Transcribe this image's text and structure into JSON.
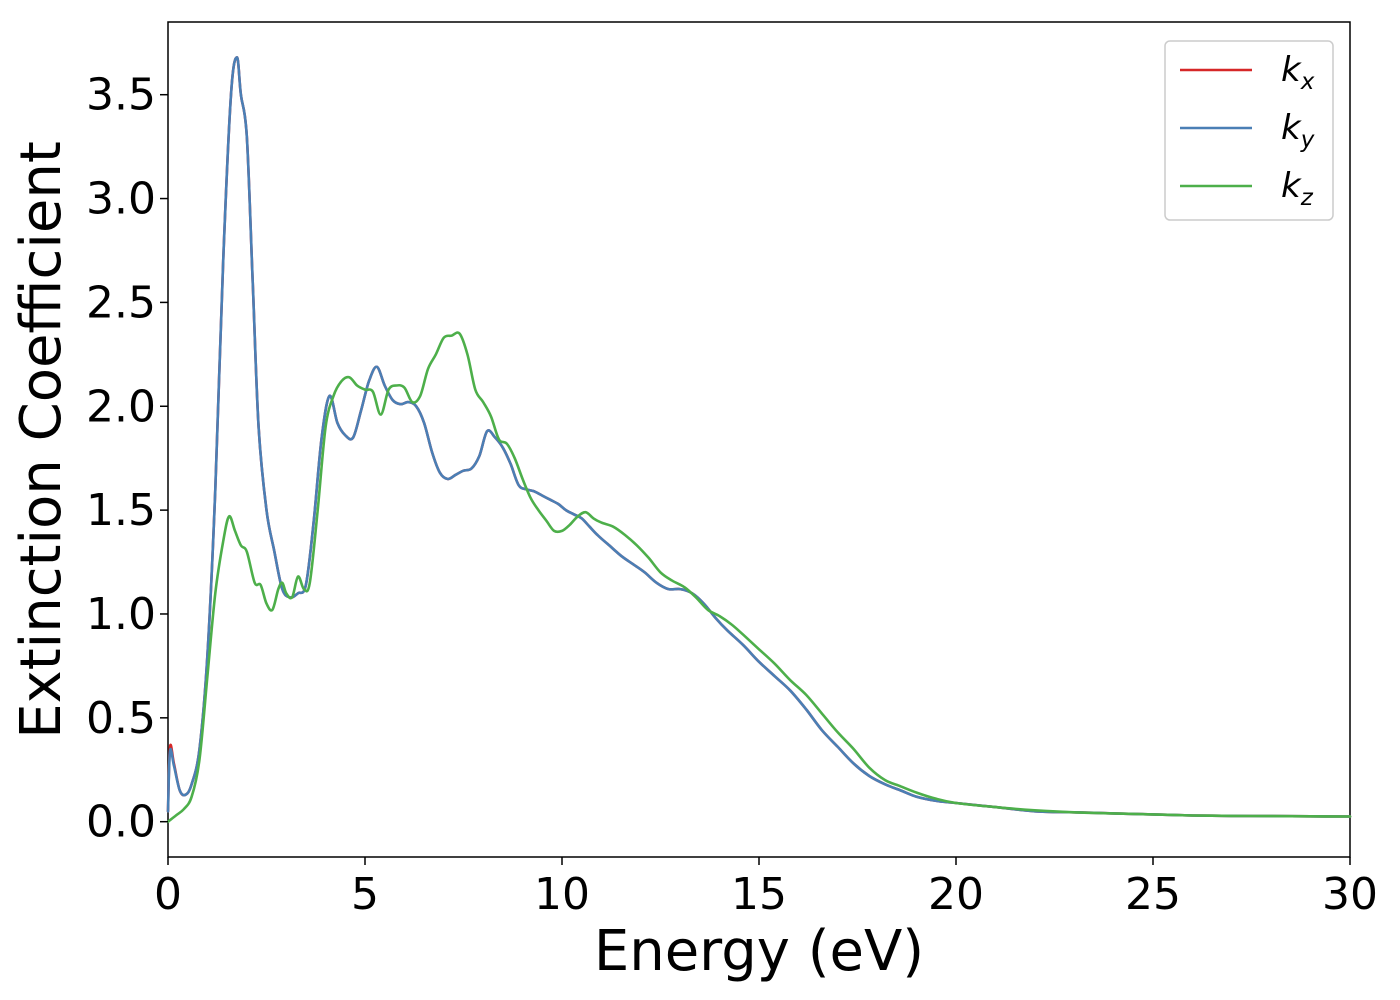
{
  "chart_data": {
    "type": "line",
    "title": "",
    "xlabel": "Energy (eV)",
    "ylabel": "Extinction Coefficient",
    "xlim": [
      0,
      30
    ],
    "ylim": [
      -0.17,
      3.85
    ],
    "xticks": [
      0,
      5,
      10,
      15,
      20,
      25,
      30
    ],
    "xtick_labels": [
      "0",
      "5",
      "10",
      "15",
      "20",
      "25",
      "30"
    ],
    "yticks": [
      0.0,
      0.5,
      1.0,
      1.5,
      2.0,
      2.5,
      3.0,
      3.5
    ],
    "ytick_labels": [
      "0.0",
      "0.5",
      "1.0",
      "1.5",
      "2.0",
      "2.5",
      "3.0",
      "3.5"
    ],
    "grid": false,
    "legend_position": "top-right",
    "series": [
      {
        "name": "k",
        "name_subscript": "x",
        "color": "#d62728",
        "x": [
          0,
          0.05,
          0.15,
          0.3,
          0.45,
          0.6,
          0.8,
          1.0,
          1.2,
          1.4,
          1.6,
          1.75,
          1.85,
          2.0,
          2.15,
          2.3,
          2.5,
          2.7,
          2.9,
          3.1,
          3.3,
          3.5,
          3.7,
          3.9,
          4.1,
          4.3,
          4.5,
          4.7,
          4.9,
          5.1,
          5.3,
          5.5,
          5.7,
          5.9,
          6.1,
          6.3,
          6.5,
          6.7,
          6.9,
          7.1,
          7.3,
          7.5,
          7.7,
          7.9,
          8.1,
          8.3,
          8.5,
          8.7,
          8.9,
          9.1,
          9.3,
          9.5,
          9.7,
          9.9,
          10.1,
          10.3,
          10.5,
          10.7,
          10.9,
          11.2,
          11.5,
          11.8,
          12.1,
          12.4,
          12.7,
          13.0,
          13.3,
          13.6,
          13.9,
          14.2,
          14.6,
          15.0,
          15.4,
          15.8,
          16.2,
          16.6,
          17.0,
          17.4,
          17.8,
          18.2,
          18.6,
          19.0,
          19.5,
          20.0,
          21.0,
          22.0,
          23.0,
          24.0,
          25.0,
          26.0,
          27.0,
          28.0,
          29.0,
          30.0
        ],
        "y": [
          0.05,
          0.36,
          0.28,
          0.15,
          0.13,
          0.18,
          0.35,
          0.8,
          1.6,
          2.7,
          3.5,
          3.68,
          3.5,
          3.3,
          2.6,
          1.9,
          1.5,
          1.3,
          1.12,
          1.08,
          1.1,
          1.14,
          1.45,
          1.85,
          2.05,
          1.92,
          1.86,
          1.85,
          1.98,
          2.12,
          2.19,
          2.1,
          2.03,
          2.01,
          2.02,
          2.0,
          1.92,
          1.78,
          1.68,
          1.65,
          1.67,
          1.69,
          1.7,
          1.76,
          1.88,
          1.85,
          1.8,
          1.72,
          1.62,
          1.6,
          1.59,
          1.57,
          1.55,
          1.53,
          1.5,
          1.48,
          1.46,
          1.42,
          1.38,
          1.33,
          1.28,
          1.24,
          1.2,
          1.15,
          1.12,
          1.12,
          1.1,
          1.05,
          0.98,
          0.92,
          0.85,
          0.77,
          0.7,
          0.63,
          0.54,
          0.44,
          0.36,
          0.28,
          0.22,
          0.18,
          0.15,
          0.12,
          0.1,
          0.09,
          0.07,
          0.05,
          0.045,
          0.04,
          0.035,
          0.03,
          0.028,
          0.027,
          0.026,
          0.025
        ]
      },
      {
        "name": "k",
        "name_subscript": "y",
        "color": "#4a7fb5",
        "x": [
          0,
          0.05,
          0.15,
          0.3,
          0.45,
          0.6,
          0.8,
          1.0,
          1.2,
          1.4,
          1.6,
          1.75,
          1.85,
          2.0,
          2.15,
          2.3,
          2.5,
          2.7,
          2.9,
          3.1,
          3.3,
          3.5,
          3.7,
          3.9,
          4.1,
          4.3,
          4.5,
          4.7,
          4.9,
          5.1,
          5.3,
          5.5,
          5.7,
          5.9,
          6.1,
          6.3,
          6.5,
          6.7,
          6.9,
          7.1,
          7.3,
          7.5,
          7.7,
          7.9,
          8.1,
          8.3,
          8.5,
          8.7,
          8.9,
          9.1,
          9.3,
          9.5,
          9.7,
          9.9,
          10.1,
          10.3,
          10.5,
          10.7,
          10.9,
          11.2,
          11.5,
          11.8,
          12.1,
          12.4,
          12.7,
          13.0,
          13.3,
          13.6,
          13.9,
          14.2,
          14.6,
          15.0,
          15.4,
          15.8,
          16.2,
          16.6,
          17.0,
          17.4,
          17.8,
          18.2,
          18.6,
          19.0,
          19.5,
          20.0,
          21.0,
          22.0,
          23.0,
          24.0,
          25.0,
          26.0,
          27.0,
          28.0,
          29.0,
          30.0
        ],
        "y": [
          0.05,
          0.34,
          0.27,
          0.15,
          0.13,
          0.18,
          0.35,
          0.8,
          1.6,
          2.7,
          3.5,
          3.68,
          3.5,
          3.3,
          2.6,
          1.9,
          1.5,
          1.3,
          1.12,
          1.08,
          1.1,
          1.14,
          1.45,
          1.85,
          2.05,
          1.92,
          1.86,
          1.85,
          1.98,
          2.12,
          2.19,
          2.1,
          2.03,
          2.01,
          2.02,
          2.0,
          1.92,
          1.78,
          1.68,
          1.65,
          1.67,
          1.69,
          1.7,
          1.76,
          1.88,
          1.85,
          1.8,
          1.72,
          1.62,
          1.6,
          1.59,
          1.57,
          1.55,
          1.53,
          1.5,
          1.48,
          1.46,
          1.42,
          1.38,
          1.33,
          1.28,
          1.24,
          1.2,
          1.15,
          1.12,
          1.12,
          1.1,
          1.05,
          0.98,
          0.92,
          0.85,
          0.77,
          0.7,
          0.63,
          0.54,
          0.44,
          0.36,
          0.28,
          0.22,
          0.18,
          0.15,
          0.12,
          0.1,
          0.09,
          0.07,
          0.05,
          0.045,
          0.04,
          0.035,
          0.03,
          0.028,
          0.027,
          0.026,
          0.025
        ]
      },
      {
        "name": "k",
        "name_subscript": "z",
        "color": "#4daf4a",
        "x": [
          0,
          0.2,
          0.4,
          0.6,
          0.8,
          1.0,
          1.2,
          1.4,
          1.55,
          1.7,
          1.85,
          2.0,
          2.2,
          2.35,
          2.5,
          2.65,
          2.8,
          2.9,
          3.0,
          3.15,
          3.3,
          3.45,
          3.6,
          3.8,
          4.0,
          4.2,
          4.4,
          4.6,
          4.8,
          5.0,
          5.2,
          5.4,
          5.6,
          5.8,
          6.0,
          6.2,
          6.4,
          6.6,
          6.8,
          7.0,
          7.2,
          7.4,
          7.6,
          7.8,
          8.0,
          8.2,
          8.4,
          8.6,
          8.8,
          9.0,
          9.2,
          9.4,
          9.6,
          9.8,
          10.0,
          10.2,
          10.4,
          10.6,
          10.8,
          11.0,
          11.3,
          11.6,
          11.9,
          12.2,
          12.5,
          12.8,
          13.1,
          13.4,
          13.7,
          14.0,
          14.3,
          14.6,
          15.0,
          15.4,
          15.8,
          16.2,
          16.6,
          17.0,
          17.4,
          17.8,
          18.2,
          18.6,
          19.0,
          19.5,
          20.0,
          21.0,
          22.0,
          23.0,
          24.0,
          25.0,
          26.0,
          27.0,
          28.0,
          29.0,
          30.0
        ],
        "y": [
          0.0,
          0.03,
          0.06,
          0.12,
          0.3,
          0.7,
          1.1,
          1.35,
          1.47,
          1.4,
          1.33,
          1.3,
          1.15,
          1.14,
          1.05,
          1.02,
          1.12,
          1.15,
          1.1,
          1.08,
          1.18,
          1.12,
          1.15,
          1.5,
          1.9,
          2.05,
          2.12,
          2.14,
          2.1,
          2.08,
          2.07,
          1.96,
          2.08,
          2.1,
          2.09,
          2.02,
          2.05,
          2.18,
          2.25,
          2.33,
          2.34,
          2.35,
          2.25,
          2.08,
          2.02,
          1.95,
          1.84,
          1.82,
          1.75,
          1.65,
          1.56,
          1.5,
          1.45,
          1.4,
          1.4,
          1.43,
          1.47,
          1.49,
          1.46,
          1.44,
          1.42,
          1.38,
          1.33,
          1.27,
          1.2,
          1.16,
          1.13,
          1.08,
          1.02,
          0.99,
          0.95,
          0.9,
          0.83,
          0.76,
          0.68,
          0.61,
          0.52,
          0.43,
          0.35,
          0.26,
          0.2,
          0.17,
          0.14,
          0.11,
          0.09,
          0.07,
          0.055,
          0.045,
          0.04,
          0.035,
          0.03,
          0.028,
          0.027,
          0.026,
          0.025
        ]
      }
    ]
  }
}
